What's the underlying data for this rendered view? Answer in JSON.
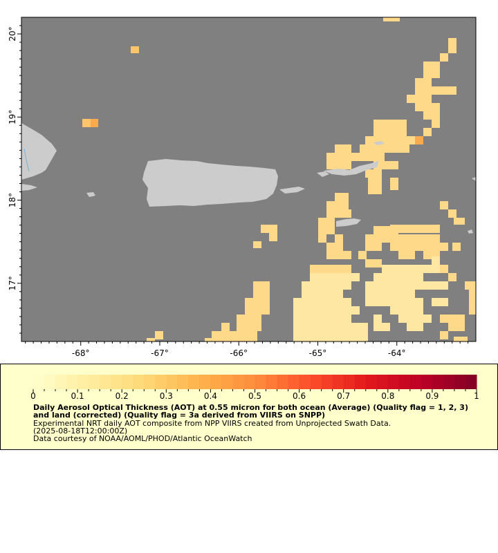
{
  "map": {
    "lon_labels": [
      "-68°",
      "-67°",
      "-66°",
      "-65°",
      "-64°"
    ],
    "lat_labels": [
      "17°",
      "18°",
      "19°",
      "20°"
    ],
    "lon_ticks": [
      -68,
      -67,
      -66,
      -65,
      -64
    ],
    "lat_ticks": [
      17,
      18,
      19,
      20
    ],
    "lon_range": [
      -68.75,
      -63.0
    ],
    "lat_range": [
      16.3,
      20.2
    ],
    "colors": {
      "no_data": "#808080",
      "land": "#cccccc",
      "water_line": "#7ab0d8"
    }
  },
  "legend": {
    "tick_labels": [
      "0",
      "0.1",
      "0.2",
      "0.3",
      "0.4",
      "0.5",
      "0.6",
      "0.7",
      "0.8",
      "0.9",
      "1"
    ],
    "range": [
      0,
      1
    ],
    "colors": [
      "#ffffcc",
      "#ffeda0",
      "#fed976",
      "#feb24c",
      "#fd8d3c",
      "#fc4e2a",
      "#e31a1c",
      "#bd0026",
      "#800026"
    ],
    "title": "Daily Aerosol Optical Thickness (AOT) at 0.55 micron for both ocean (Average) (Quality flag = 1, 2, 3) and land (corrected) (Quality flag = 3a derived from VIIRS on SNPP)",
    "subtitle": "Experimental NRT daily AOT composite from NPP VIIRS created from Unprojected Swath Data.",
    "date": "(2025-08-18T12:00:00Z)",
    "credit": "Data courtesy of NOAA/AOML/PHOD/Atlantic OceanWatch"
  }
}
